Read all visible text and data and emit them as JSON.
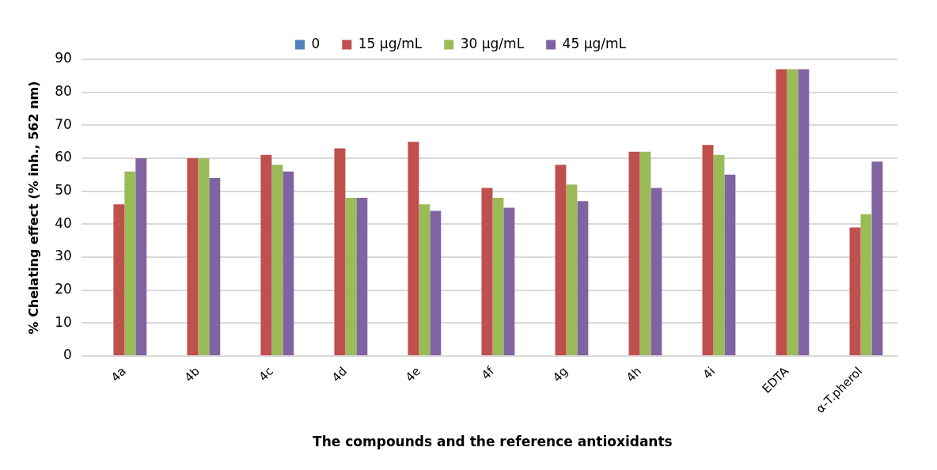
{
  "chart_data": {
    "type": "bar",
    "xlabel": "The compounds and the reference antioxidants",
    "ylabel": "% Chelating effect (% inh., 562 nm)",
    "categories": [
      "4a",
      "4b",
      "4c",
      "4d",
      "4e",
      "4f",
      "4g",
      "4h",
      "4i",
      "EDTA",
      "α-T.pherol"
    ],
    "series": [
      {
        "name": "0",
        "color": "#4f81bd",
        "values": [
          0,
          0,
          0,
          0,
          0,
          0,
          0,
          0,
          0,
          0,
          0
        ]
      },
      {
        "name": "15 µg/mL",
        "color": "#c0504d",
        "values": [
          46,
          60,
          61,
          63,
          65,
          51,
          58,
          62,
          64,
          87,
          39
        ]
      },
      {
        "name": "30 µg/mL",
        "color": "#9bbb59",
        "values": [
          56,
          60,
          58,
          48,
          46,
          48,
          52,
          62,
          61,
          87,
          43
        ]
      },
      {
        "name": "45 µg/mL",
        "color": "#8064a2",
        "values": [
          60,
          54,
          56,
          48,
          44,
          45,
          47,
          51,
          55,
          87,
          59
        ]
      }
    ],
    "ylim": [
      0,
      90
    ],
    "yticks": [
      0,
      10,
      20,
      30,
      40,
      50,
      60,
      70,
      80,
      90
    ],
    "grid": "y",
    "legend": "top"
  }
}
